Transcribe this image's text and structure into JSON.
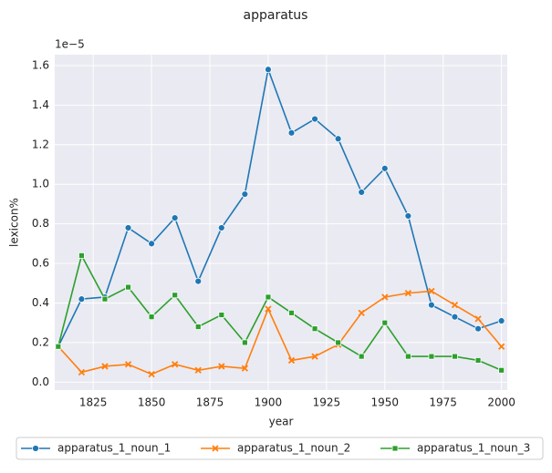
{
  "chart_data": {
    "type": "line",
    "title": "apparatus",
    "x_label": "year",
    "y_label": "lexicon%",
    "y_offset_label": "1e−5",
    "x": [
      1810,
      1820,
      1830,
      1840,
      1850,
      1860,
      1870,
      1880,
      1890,
      1900,
      1910,
      1920,
      1930,
      1940,
      1950,
      1960,
      1970,
      1980,
      1990,
      2000
    ],
    "series": [
      {
        "name": "apparatus_1_noun_1",
        "color": "#1f77b4",
        "marker": "circle",
        "values": [
          0.18,
          0.42,
          0.43,
          0.78,
          0.7,
          0.83,
          0.51,
          0.78,
          0.95,
          1.58,
          1.26,
          1.33,
          1.23,
          0.96,
          1.08,
          0.84,
          0.39,
          0.33,
          0.27,
          0.31
        ]
      },
      {
        "name": "apparatus_1_noun_2",
        "color": "#ff7f0e",
        "marker": "x",
        "values": [
          0.18,
          0.05,
          0.08,
          0.09,
          0.04,
          0.09,
          0.06,
          0.08,
          0.07,
          0.37,
          0.11,
          0.13,
          0.19,
          0.35,
          0.43,
          0.45,
          0.46,
          0.39,
          0.32,
          0.18
        ]
      },
      {
        "name": "apparatus_1_noun_3",
        "color": "#2ca02c",
        "marker": "square",
        "values": [
          0.18,
          0.64,
          0.42,
          0.48,
          0.33,
          0.44,
          0.28,
          0.34,
          0.2,
          0.43,
          0.35,
          0.27,
          0.2,
          0.13,
          0.3,
          0.13,
          0.13,
          0.13,
          0.11,
          0.06
        ]
      }
    ],
    "xlim": [
      1808.5,
      2002.5
    ],
    "xticks": [
      1825,
      1850,
      1875,
      1900,
      1925,
      1950,
      1975,
      2000
    ],
    "ylim": [
      -0.04,
      1.655
    ],
    "yticks": [
      {
        "value": 0,
        "label": "0.0"
      },
      0.2,
      0.4,
      0.6,
      0.8,
      {
        "value": 1,
        "label": "1.0"
      },
      1.2,
      1.4,
      1.6
    ],
    "grid": true,
    "legend": "bottom"
  }
}
